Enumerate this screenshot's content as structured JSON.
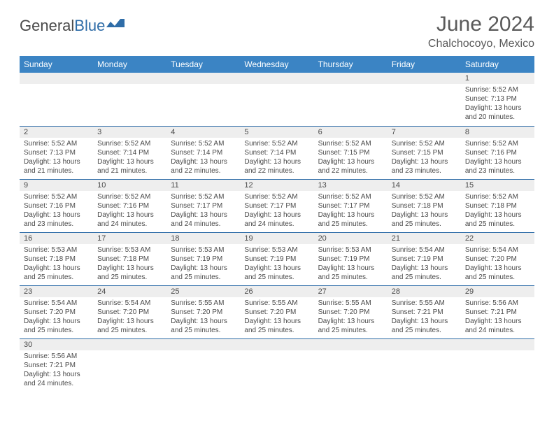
{
  "logo": {
    "text1": "General",
    "text2": "Blue"
  },
  "header": {
    "month": "June 2024",
    "location": "Chalchocoyo, Mexico"
  },
  "colors": {
    "header_bg": "#3b84c4",
    "header_text": "#ffffff",
    "border": "#2f6da8",
    "daynum_bg": "#eeeeee",
    "text": "#4a4a4a",
    "logo_blue": "#2f6da8"
  },
  "weekdays": [
    "Sunday",
    "Monday",
    "Tuesday",
    "Wednesday",
    "Thursday",
    "Friday",
    "Saturday"
  ],
  "weeks": [
    [
      null,
      null,
      null,
      null,
      null,
      null,
      {
        "n": "1",
        "sr": "Sunrise: 5:52 AM",
        "ss": "Sunset: 7:13 PM",
        "dl": "Daylight: 13 hours and 20 minutes."
      }
    ],
    [
      {
        "n": "2",
        "sr": "Sunrise: 5:52 AM",
        "ss": "Sunset: 7:13 PM",
        "dl": "Daylight: 13 hours and 21 minutes."
      },
      {
        "n": "3",
        "sr": "Sunrise: 5:52 AM",
        "ss": "Sunset: 7:14 PM",
        "dl": "Daylight: 13 hours and 21 minutes."
      },
      {
        "n": "4",
        "sr": "Sunrise: 5:52 AM",
        "ss": "Sunset: 7:14 PM",
        "dl": "Daylight: 13 hours and 22 minutes."
      },
      {
        "n": "5",
        "sr": "Sunrise: 5:52 AM",
        "ss": "Sunset: 7:14 PM",
        "dl": "Daylight: 13 hours and 22 minutes."
      },
      {
        "n": "6",
        "sr": "Sunrise: 5:52 AM",
        "ss": "Sunset: 7:15 PM",
        "dl": "Daylight: 13 hours and 22 minutes."
      },
      {
        "n": "7",
        "sr": "Sunrise: 5:52 AM",
        "ss": "Sunset: 7:15 PM",
        "dl": "Daylight: 13 hours and 23 minutes."
      },
      {
        "n": "8",
        "sr": "Sunrise: 5:52 AM",
        "ss": "Sunset: 7:16 PM",
        "dl": "Daylight: 13 hours and 23 minutes."
      }
    ],
    [
      {
        "n": "9",
        "sr": "Sunrise: 5:52 AM",
        "ss": "Sunset: 7:16 PM",
        "dl": "Daylight: 13 hours and 23 minutes."
      },
      {
        "n": "10",
        "sr": "Sunrise: 5:52 AM",
        "ss": "Sunset: 7:16 PM",
        "dl": "Daylight: 13 hours and 24 minutes."
      },
      {
        "n": "11",
        "sr": "Sunrise: 5:52 AM",
        "ss": "Sunset: 7:17 PM",
        "dl": "Daylight: 13 hours and 24 minutes."
      },
      {
        "n": "12",
        "sr": "Sunrise: 5:52 AM",
        "ss": "Sunset: 7:17 PM",
        "dl": "Daylight: 13 hours and 24 minutes."
      },
      {
        "n": "13",
        "sr": "Sunrise: 5:52 AM",
        "ss": "Sunset: 7:17 PM",
        "dl": "Daylight: 13 hours and 25 minutes."
      },
      {
        "n": "14",
        "sr": "Sunrise: 5:52 AM",
        "ss": "Sunset: 7:18 PM",
        "dl": "Daylight: 13 hours and 25 minutes."
      },
      {
        "n": "15",
        "sr": "Sunrise: 5:52 AM",
        "ss": "Sunset: 7:18 PM",
        "dl": "Daylight: 13 hours and 25 minutes."
      }
    ],
    [
      {
        "n": "16",
        "sr": "Sunrise: 5:53 AM",
        "ss": "Sunset: 7:18 PM",
        "dl": "Daylight: 13 hours and 25 minutes."
      },
      {
        "n": "17",
        "sr": "Sunrise: 5:53 AM",
        "ss": "Sunset: 7:18 PM",
        "dl": "Daylight: 13 hours and 25 minutes."
      },
      {
        "n": "18",
        "sr": "Sunrise: 5:53 AM",
        "ss": "Sunset: 7:19 PM",
        "dl": "Daylight: 13 hours and 25 minutes."
      },
      {
        "n": "19",
        "sr": "Sunrise: 5:53 AM",
        "ss": "Sunset: 7:19 PM",
        "dl": "Daylight: 13 hours and 25 minutes."
      },
      {
        "n": "20",
        "sr": "Sunrise: 5:53 AM",
        "ss": "Sunset: 7:19 PM",
        "dl": "Daylight: 13 hours and 25 minutes."
      },
      {
        "n": "21",
        "sr": "Sunrise: 5:54 AM",
        "ss": "Sunset: 7:19 PM",
        "dl": "Daylight: 13 hours and 25 minutes."
      },
      {
        "n": "22",
        "sr": "Sunrise: 5:54 AM",
        "ss": "Sunset: 7:20 PM",
        "dl": "Daylight: 13 hours and 25 minutes."
      }
    ],
    [
      {
        "n": "23",
        "sr": "Sunrise: 5:54 AM",
        "ss": "Sunset: 7:20 PM",
        "dl": "Daylight: 13 hours and 25 minutes."
      },
      {
        "n": "24",
        "sr": "Sunrise: 5:54 AM",
        "ss": "Sunset: 7:20 PM",
        "dl": "Daylight: 13 hours and 25 minutes."
      },
      {
        "n": "25",
        "sr": "Sunrise: 5:55 AM",
        "ss": "Sunset: 7:20 PM",
        "dl": "Daylight: 13 hours and 25 minutes."
      },
      {
        "n": "26",
        "sr": "Sunrise: 5:55 AM",
        "ss": "Sunset: 7:20 PM",
        "dl": "Daylight: 13 hours and 25 minutes."
      },
      {
        "n": "27",
        "sr": "Sunrise: 5:55 AM",
        "ss": "Sunset: 7:20 PM",
        "dl": "Daylight: 13 hours and 25 minutes."
      },
      {
        "n": "28",
        "sr": "Sunrise: 5:55 AM",
        "ss": "Sunset: 7:21 PM",
        "dl": "Daylight: 13 hours and 25 minutes."
      },
      {
        "n": "29",
        "sr": "Sunrise: 5:56 AM",
        "ss": "Sunset: 7:21 PM",
        "dl": "Daylight: 13 hours and 24 minutes."
      }
    ],
    [
      {
        "n": "30",
        "sr": "Sunrise: 5:56 AM",
        "ss": "Sunset: 7:21 PM",
        "dl": "Daylight: 13 hours and 24 minutes."
      },
      null,
      null,
      null,
      null,
      null,
      null
    ]
  ]
}
